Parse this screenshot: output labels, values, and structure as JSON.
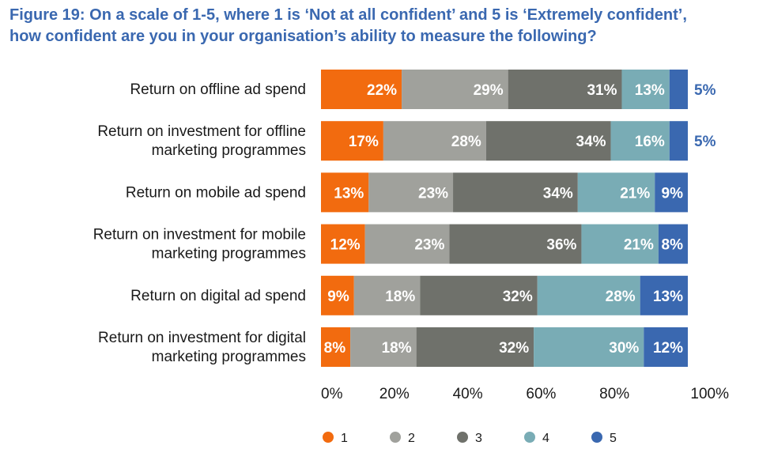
{
  "title_line1": "Figure 19: On a scale of 1-5, where 1 is ‘Not at all confident’ and 5 is ‘Extremely confident’,",
  "title_line2": "how confident are you in your organisation’s ability to measure the following?",
  "chart_data": {
    "type": "bar",
    "orientation": "horizontal",
    "stacked": true,
    "categories": [
      [
        "Return on offline ad spend"
      ],
      [
        "Return on investment for offline",
        "marketing programmes"
      ],
      [
        "Return on mobile ad spend"
      ],
      [
        "Return on investment for mobile",
        "marketing programmes"
      ],
      [
        "Return on digital ad spend"
      ],
      [
        "Return on investment for digital",
        "marketing programmes"
      ]
    ],
    "series": [
      {
        "name": "1",
        "color": "#f26b0f",
        "values": [
          22,
          17,
          13,
          12,
          9,
          8
        ]
      },
      {
        "name": "2",
        "color": "#a0a19c",
        "values": [
          29,
          28,
          23,
          23,
          18,
          18
        ]
      },
      {
        "name": "3",
        "color": "#6f716b",
        "values": [
          31,
          34,
          34,
          36,
          32,
          32
        ]
      },
      {
        "name": "4",
        "color": "#79acb5",
        "values": [
          13,
          16,
          21,
          21,
          28,
          30
        ]
      },
      {
        "name": "5",
        "color": "#3a68b0",
        "values": [
          5,
          5,
          9,
          8,
          13,
          12
        ]
      }
    ],
    "value_suffix": "%",
    "xlim": [
      0,
      100
    ],
    "x_ticks": [
      "0%",
      "20%",
      "40%",
      "60%",
      "80%",
      "100%"
    ],
    "legend_position": "bottom",
    "grid": false
  }
}
